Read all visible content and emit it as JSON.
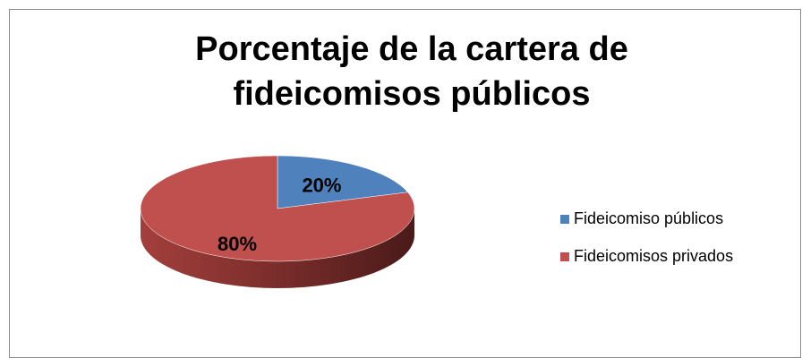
{
  "chart_data": {
    "type": "pie",
    "title": "Porcentaje de la cartera de fideicomisos públicos",
    "categories": [
      "Fideicomiso públicos",
      "Fideicomisos privados"
    ],
    "values": [
      20,
      80
    ],
    "value_labels": [
      "20%",
      "80%"
    ],
    "colors": [
      "#4f81bd",
      "#c0504d"
    ],
    "legend": "right"
  }
}
